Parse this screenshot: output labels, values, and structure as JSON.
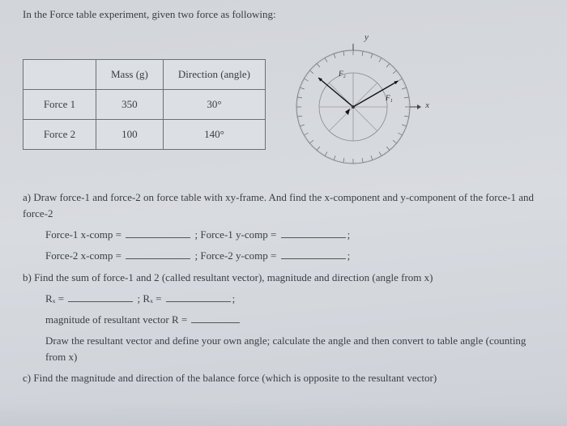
{
  "intro": "In the Force table experiment, given two force as following:",
  "table": {
    "headers": [
      "",
      "Mass (g)",
      "Direction (angle)"
    ],
    "rows": [
      [
        "Force 1",
        "350",
        "30°"
      ],
      [
        "Force 2",
        "100",
        "140°"
      ]
    ],
    "border_color": "#6b7078",
    "cell_bg": "#dcdfe4",
    "font_size": 13
  },
  "dial": {
    "y_axis_label": "y",
    "x_axis_label": "x",
    "outer_radius": 70,
    "inner_radius": 42,
    "tick_count_major": 36,
    "f1_label": "F₁",
    "f1_angle_deg": 30,
    "f2_label": "F₂",
    "f2_angle_deg": 140,
    "arrow_color": "#111",
    "ring_color": "#888",
    "tick_color": "#666",
    "axis_color": "#444"
  },
  "q": {
    "a_text": "a) Draw force-1 and force-2 on force table with xy-frame. And find the x-component and y-component of the force-1 and force-2",
    "a_lines": {
      "l1_left": "Force-1 x-comp =",
      "l1_right": "; Force-1 y-comp =",
      "l2_left": "Force-2 x-comp =",
      "l2_right": "; Force-2 y-comp ="
    },
    "b_text": "b) Find the sum of force-1 and 2 (called resultant vector), magnitude and direction (angle from x)",
    "b_line": {
      "rx_a": "Rₓ =",
      "rx_b": ";  Rₓ ="
    },
    "b_mag": "magnitude of resultant vector R =",
    "b_draw": "Draw the resultant vector and define your own angle; calculate the angle and then convert to table angle (counting from x)",
    "c_text": "c) Find the magnitude and direction of the balance force (which is opposite to the resultant vector)"
  },
  "colors": {
    "page_bg": "#d5d8dd",
    "text": "#3a3e45"
  }
}
